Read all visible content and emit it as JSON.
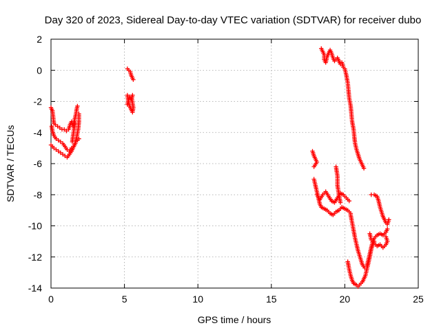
{
  "chart_data": {
    "type": "scatter",
    "title": "Day 320 of 2023, Sidereal Day-to-day VTEC variation (SDTVAR) for receiver dubo",
    "xlabel": "GPS time / hours",
    "ylabel": "SDTVAR / TECUs",
    "xlim": [
      0,
      25
    ],
    "ylim": [
      -14,
      2
    ],
    "xticks": [
      "0",
      "5",
      "10",
      "15",
      "20",
      "25"
    ],
    "yticks": [
      "2",
      "0",
      "-2",
      "-4",
      "-6",
      "-8",
      "-10",
      "-12",
      "-14"
    ],
    "grid": true,
    "marker": "+",
    "color": "#ff0000",
    "series": [
      {
        "name": "SDTVAR",
        "segments": [
          [
            [
              0.0,
              -2.4
            ],
            [
              0.1,
              -2.6
            ],
            [
              0.15,
              -3.0
            ],
            [
              0.2,
              -3.4
            ],
            [
              0.3,
              -3.5
            ],
            [
              0.45,
              -3.6
            ],
            [
              0.6,
              -3.7
            ],
            [
              0.75,
              -3.8
            ],
            [
              0.9,
              -3.8
            ],
            [
              1.05,
              -3.9
            ],
            [
              1.2,
              -3.8
            ],
            [
              1.3,
              -3.5
            ],
            [
              1.4,
              -3.3
            ],
            [
              1.5,
              -3.6
            ],
            [
              1.6,
              -3.2
            ],
            [
              1.7,
              -2.8
            ],
            [
              1.75,
              -2.5
            ],
            [
              1.8,
              -2.3
            ]
          ],
          [
            [
              0.0,
              -4.8
            ],
            [
              0.1,
              -4.9
            ],
            [
              0.2,
              -5.0
            ],
            [
              0.35,
              -5.1
            ],
            [
              0.5,
              -5.2
            ],
            [
              0.65,
              -5.3
            ],
            [
              0.8,
              -5.4
            ],
            [
              0.95,
              -5.5
            ],
            [
              1.1,
              -5.6
            ],
            [
              1.25,
              -5.4
            ],
            [
              1.4,
              -5.2
            ],
            [
              1.5,
              -5.0
            ],
            [
              1.6,
              -4.8
            ],
            [
              1.7,
              -4.6
            ],
            [
              1.8,
              -4.5
            ],
            [
              1.9,
              -4.4
            ]
          ],
          [
            [
              0.05,
              -3.6
            ],
            [
              0.1,
              -3.9
            ],
            [
              0.2,
              -4.2
            ],
            [
              0.35,
              -4.4
            ],
            [
              0.5,
              -4.5
            ],
            [
              0.65,
              -4.6
            ],
            [
              0.8,
              -4.7
            ],
            [
              0.95,
              -4.9
            ],
            [
              1.1,
              -5.1
            ],
            [
              1.25,
              -5.2
            ],
            [
              1.4,
              -5.0
            ],
            [
              1.55,
              -4.9
            ],
            [
              1.65,
              -4.7
            ],
            [
              1.75,
              -4.3
            ],
            [
              1.85,
              -3.8
            ],
            [
              1.9,
              -3.3
            ],
            [
              1.9,
              -2.8
            ]
          ],
          [
            [
              1.45,
              -4.6
            ],
            [
              1.5,
              -4.2
            ],
            [
              1.55,
              -3.9
            ],
            [
              1.6,
              -3.6
            ],
            [
              1.65,
              -3.4
            ]
          ],
          [
            [
              5.2,
              -1.6
            ],
            [
              5.25,
              -1.9
            ],
            [
              5.3,
              -2.1
            ],
            [
              5.35,
              -2.3
            ],
            [
              5.45,
              -2.5
            ],
            [
              5.55,
              -2.7
            ],
            [
              5.6,
              -2.4
            ],
            [
              5.55,
              -2.1
            ],
            [
              5.5,
              -1.8
            ],
            [
              5.55,
              -1.6
            ],
            [
              5.45,
              -1.9
            ],
            [
              5.35,
              -1.7
            ],
            [
              5.25,
              -2.0
            ],
            [
              5.2,
              -2.2
            ]
          ],
          [
            [
              5.2,
              0.1
            ],
            [
              5.3,
              0.0
            ],
            [
              5.4,
              -0.1
            ],
            [
              5.45,
              -0.3
            ],
            [
              5.55,
              -0.5
            ],
            [
              5.6,
              -0.6
            ]
          ],
          [
            [
              18.4,
              1.4
            ],
            [
              18.5,
              1.2
            ],
            [
              18.6,
              1.0
            ],
            [
              18.6,
              0.7
            ],
            [
              18.7,
              0.5
            ],
            [
              18.8,
              0.9
            ],
            [
              18.9,
              1.1
            ],
            [
              19.0,
              1.3
            ],
            [
              19.1,
              1.1
            ],
            [
              19.2,
              0.8
            ],
            [
              19.3,
              0.6
            ],
            [
              19.4,
              0.7
            ],
            [
              19.5,
              0.8
            ],
            [
              19.6,
              0.6
            ],
            [
              19.7,
              0.4
            ],
            [
              19.8,
              0.5
            ],
            [
              19.9,
              0.2
            ],
            [
              20.0,
              0.1
            ],
            [
              20.1,
              -0.3
            ],
            [
              20.2,
              -0.8
            ],
            [
              20.25,
              -1.3
            ],
            [
              20.3,
              -1.8
            ],
            [
              20.4,
              -2.3
            ],
            [
              20.45,
              -2.8
            ],
            [
              20.5,
              -3.3
            ],
            [
              20.6,
              -3.8
            ],
            [
              20.65,
              -4.3
            ],
            [
              20.7,
              -4.7
            ],
            [
              20.8,
              -5.1
            ],
            [
              20.9,
              -5.4
            ],
            [
              21.0,
              -5.7
            ],
            [
              21.1,
              -5.9
            ],
            [
              21.2,
              -6.1
            ],
            [
              21.3,
              -6.3
            ]
          ],
          [
            [
              17.8,
              -5.2
            ],
            [
              17.9,
              -5.5
            ],
            [
              18.0,
              -5.7
            ],
            [
              18.1,
              -5.9
            ],
            [
              17.9,
              -6.2
            ]
          ],
          [
            [
              17.9,
              -7.0
            ],
            [
              18.0,
              -7.4
            ],
            [
              18.1,
              -7.8
            ],
            [
              18.2,
              -8.2
            ],
            [
              18.3,
              -8.6
            ],
            [
              18.4,
              -8.8
            ],
            [
              18.6,
              -8.9
            ],
            [
              18.8,
              -9.0
            ],
            [
              19.0,
              -9.2
            ],
            [
              19.2,
              -9.3
            ],
            [
              19.4,
              -9.1
            ],
            [
              19.6,
              -9.0
            ],
            [
              19.8,
              -8.8
            ],
            [
              20.0,
              -8.9
            ],
            [
              20.2,
              -9.0
            ],
            [
              20.4,
              -9.2
            ]
          ],
          [
            [
              18.1,
              -8.0
            ],
            [
              18.3,
              -8.3
            ],
            [
              18.5,
              -8.0
            ],
            [
              18.7,
              -7.8
            ],
            [
              18.9,
              -8.1
            ],
            [
              19.1,
              -8.4
            ],
            [
              19.3,
              -8.5
            ],
            [
              19.5,
              -8.2
            ],
            [
              19.7,
              -7.9
            ],
            [
              19.9,
              -8.0
            ],
            [
              20.1,
              -8.2
            ],
            [
              20.3,
              -8.4
            ]
          ],
          [
            [
              19.4,
              -6.2
            ],
            [
              19.5,
              -6.8
            ],
            [
              19.5,
              -7.4
            ],
            [
              19.6,
              -8.0
            ],
            [
              19.7,
              -8.5
            ]
          ],
          [
            [
              20.4,
              -9.3
            ],
            [
              20.5,
              -9.8
            ],
            [
              20.6,
              -10.3
            ],
            [
              20.7,
              -10.8
            ],
            [
              20.8,
              -11.2
            ],
            [
              20.9,
              -11.6
            ],
            [
              21.0,
              -11.9
            ],
            [
              21.1,
              -12.2
            ],
            [
              21.2,
              -12.5
            ],
            [
              21.35,
              -12.7
            ],
            [
              21.5,
              -12.6
            ],
            [
              21.6,
              -12.2
            ],
            [
              21.7,
              -11.8
            ],
            [
              21.8,
              -11.4
            ],
            [
              21.9,
              -11.0
            ],
            [
              22.0,
              -10.8
            ],
            [
              22.2,
              -10.6
            ],
            [
              22.4,
              -10.5
            ],
            [
              22.6,
              -10.6
            ],
            [
              22.8,
              -10.4
            ],
            [
              22.9,
              -10.2
            ]
          ],
          [
            [
              20.2,
              -12.3
            ],
            [
              20.3,
              -12.8
            ],
            [
              20.4,
              -13.2
            ],
            [
              20.5,
              -13.5
            ],
            [
              20.6,
              -13.7
            ],
            [
              20.8,
              -13.8
            ],
            [
              20.9,
              -13.9
            ],
            [
              21.0,
              -13.8
            ],
            [
              21.2,
              -13.6
            ],
            [
              21.4,
              -13.2
            ],
            [
              21.5,
              -12.8
            ],
            [
              21.6,
              -12.4
            ],
            [
              21.7,
              -12.0
            ],
            [
              21.8,
              -11.5
            ],
            [
              21.9,
              -11.2
            ],
            [
              22.0,
              -11.0
            ]
          ],
          [
            [
              21.7,
              -10.5
            ],
            [
              21.8,
              -10.9
            ],
            [
              22.0,
              -11.1
            ],
            [
              22.2,
              -11.3
            ],
            [
              22.4,
              -11.2
            ],
            [
              22.6,
              -11.4
            ],
            [
              22.8,
              -11.2
            ],
            [
              22.9,
              -11.0
            ],
            [
              22.8,
              -10.7
            ]
          ],
          [
            [
              21.8,
              -8.0
            ],
            [
              22.0,
              -8.0
            ],
            [
              22.2,
              -8.1
            ],
            [
              22.3,
              -8.4
            ],
            [
              22.4,
              -8.8
            ],
            [
              22.5,
              -9.1
            ],
            [
              22.6,
              -9.4
            ],
            [
              22.7,
              -9.6
            ],
            [
              22.8,
              -9.8
            ],
            [
              22.9,
              -9.9
            ],
            [
              23.0,
              -9.6
            ]
          ]
        ]
      }
    ]
  }
}
